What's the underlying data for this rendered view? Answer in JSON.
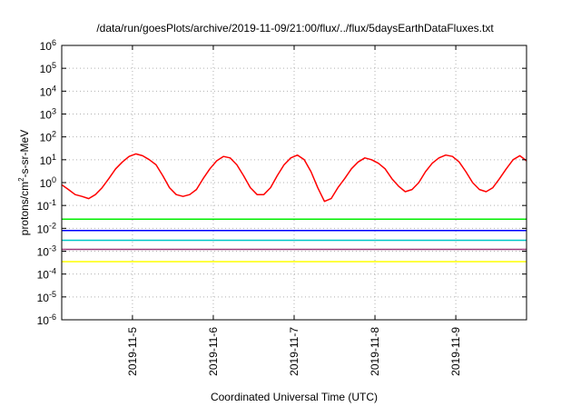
{
  "chart_data": {
    "type": "line",
    "title": "/data/run/goesPlots/archive/2019-11-09/21:00/flux/../flux/5daysEarthDataFluxes.txt",
    "xlabel": "Coordinated Universal Time (UTC)",
    "ylabel_prefix": "protons/cm",
    "ylabel_sup": "2",
    "ylabel_suffix": "-s-sr-MeV",
    "y_scale": "log",
    "ylim": [
      1e-06,
      1000000.0
    ],
    "y_ticks": [
      {
        "exp": "-6",
        "value": 1e-06
      },
      {
        "exp": "-5",
        "value": 1e-05
      },
      {
        "exp": "-4",
        "value": 0.0001
      },
      {
        "exp": "-3",
        "value": 0.001
      },
      {
        "exp": "-2",
        "value": 0.01
      },
      {
        "exp": "-1",
        "value": 0.1
      },
      {
        "exp": "0",
        "value": 1
      },
      {
        "exp": "1",
        "value": 10.0
      },
      {
        "exp": "2",
        "value": 100.0
      },
      {
        "exp": "3",
        "value": 1000.0
      },
      {
        "exp": "4",
        "value": 10000.0
      },
      {
        "exp": "5",
        "value": 100000.0
      },
      {
        "exp": "6",
        "value": 1000000.0
      }
    ],
    "xlim": [
      "2019-11-04T03:00",
      "2019-11-09T21:00"
    ],
    "x_ticks": [
      "2019-11-5",
      "2019-11-6",
      "2019-11-7",
      "2019-11-8",
      "2019-11-9"
    ],
    "x_tick_dates": [
      "2019-11-05T00:00",
      "2019-11-06T00:00",
      "2019-11-07T00:00",
      "2019-11-08T00:00",
      "2019-11-09T00:00"
    ],
    "grid": true,
    "series": [
      {
        "color": "#ff0000",
        "points": [
          [
            "2019-11-04T03:00",
            0.8
          ],
          [
            "2019-11-04T05:00",
            0.5
          ],
          [
            "2019-11-04T07:00",
            0.3
          ],
          [
            "2019-11-04T09:00",
            0.25
          ],
          [
            "2019-11-04T11:00",
            0.2
          ],
          [
            "2019-11-04T13:00",
            0.3
          ],
          [
            "2019-11-04T15:00",
            0.6
          ],
          [
            "2019-11-04T17:00",
            1.5
          ],
          [
            "2019-11-04T19:00",
            4
          ],
          [
            "2019-11-04T21:00",
            8
          ],
          [
            "2019-11-04T23:00",
            14
          ],
          [
            "2019-11-05T01:00",
            18
          ],
          [
            "2019-11-05T03:00",
            15
          ],
          [
            "2019-11-05T05:00",
            10
          ],
          [
            "2019-11-05T07:00",
            6
          ],
          [
            "2019-11-05T09:00",
            2
          ],
          [
            "2019-11-05T11:00",
            0.6
          ],
          [
            "2019-11-05T13:00",
            0.3
          ],
          [
            "2019-11-05T15:00",
            0.25
          ],
          [
            "2019-11-05T17:00",
            0.3
          ],
          [
            "2019-11-05T19:00",
            0.5
          ],
          [
            "2019-11-05T21:00",
            1.5
          ],
          [
            "2019-11-05T23:00",
            4
          ],
          [
            "2019-11-06T01:00",
            9
          ],
          [
            "2019-11-06T03:00",
            14
          ],
          [
            "2019-11-06T05:00",
            12
          ],
          [
            "2019-11-06T07:00",
            6
          ],
          [
            "2019-11-06T09:00",
            2
          ],
          [
            "2019-11-06T11:00",
            0.6
          ],
          [
            "2019-11-06T13:00",
            0.3
          ],
          [
            "2019-11-06T15:00",
            0.3
          ],
          [
            "2019-11-06T17:00",
            0.6
          ],
          [
            "2019-11-06T19:00",
            2
          ],
          [
            "2019-11-06T21:00",
            6
          ],
          [
            "2019-11-06T23:00",
            12
          ],
          [
            "2019-11-07T01:00",
            16
          ],
          [
            "2019-11-07T03:00",
            10
          ],
          [
            "2019-11-07T05:00",
            3
          ],
          [
            "2019-11-07T07:00",
            0.6
          ],
          [
            "2019-11-07T09:00",
            0.15
          ],
          [
            "2019-11-07T11:00",
            0.2
          ],
          [
            "2019-11-07T13:00",
            0.6
          ],
          [
            "2019-11-07T15:00",
            1.5
          ],
          [
            "2019-11-07T17:00",
            4
          ],
          [
            "2019-11-07T19:00",
            8
          ],
          [
            "2019-11-07T21:00",
            12
          ],
          [
            "2019-11-07T23:00",
            10
          ],
          [
            "2019-11-08T01:00",
            7
          ],
          [
            "2019-11-08T03:00",
            4
          ],
          [
            "2019-11-08T05:00",
            1.5
          ],
          [
            "2019-11-08T07:00",
            0.7
          ],
          [
            "2019-11-08T09:00",
            0.4
          ],
          [
            "2019-11-08T11:00",
            0.5
          ],
          [
            "2019-11-08T13:00",
            1
          ],
          [
            "2019-11-08T15:00",
            3
          ],
          [
            "2019-11-08T17:00",
            7
          ],
          [
            "2019-11-08T19:00",
            12
          ],
          [
            "2019-11-08T21:00",
            16
          ],
          [
            "2019-11-08T23:00",
            14
          ],
          [
            "2019-11-09T01:00",
            8
          ],
          [
            "2019-11-09T03:00",
            3
          ],
          [
            "2019-11-09T05:00",
            1
          ],
          [
            "2019-11-09T07:00",
            0.5
          ],
          [
            "2019-11-09T09:00",
            0.4
          ],
          [
            "2019-11-09T11:00",
            0.6
          ],
          [
            "2019-11-09T13:00",
            1.5
          ],
          [
            "2019-11-09T15:00",
            4
          ],
          [
            "2019-11-09T17:00",
            10
          ],
          [
            "2019-11-09T19:00",
            15
          ],
          [
            "2019-11-09T21:00",
            9
          ]
        ]
      },
      {
        "color": "#00ee00",
        "points": [
          [
            "2019-11-04T03:00",
            0.025
          ],
          [
            "2019-11-09T21:00",
            0.025
          ]
        ]
      },
      {
        "color": "#0000ff",
        "points": [
          [
            "2019-11-04T03:00",
            0.008
          ],
          [
            "2019-11-09T21:00",
            0.008
          ]
        ]
      },
      {
        "color": "#00c8c8",
        "points": [
          [
            "2019-11-04T03:00",
            0.003
          ],
          [
            "2019-11-09T21:00",
            0.003
          ]
        ]
      },
      {
        "color": "#9b3a7a",
        "points": [
          [
            "2019-11-04T03:00",
            0.0012
          ],
          [
            "2019-11-09T21:00",
            0.0012
          ]
        ]
      },
      {
        "color": "#ffff00",
        "points": [
          [
            "2019-11-04T03:00",
            0.00035
          ],
          [
            "2019-11-09T21:00",
            0.00035
          ]
        ]
      }
    ]
  }
}
